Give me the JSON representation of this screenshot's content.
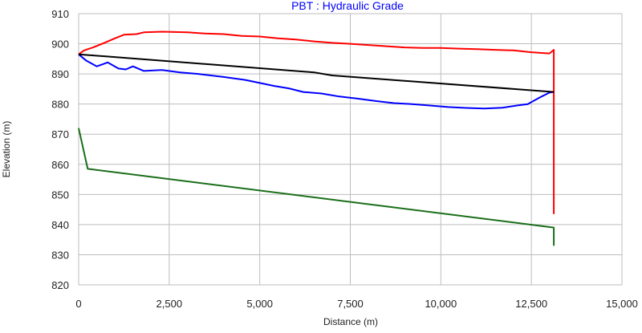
{
  "chart_data": {
    "type": "line",
    "title": "PBT : Hydraulic Grade",
    "xlabel": "Distance (m)",
    "ylabel": "Elevation (m)",
    "xlim": [
      0,
      15000
    ],
    "ylim": [
      820,
      910
    ],
    "xticks": [
      0,
      2500,
      5000,
      7500,
      10000,
      12500,
      15000
    ],
    "xtick_labels": [
      "0",
      "2,500",
      "5,000",
      "7,500",
      "10,000",
      "12,500",
      "15,000"
    ],
    "yticks": [
      820,
      830,
      840,
      850,
      860,
      870,
      880,
      890,
      900,
      910
    ],
    "grid": true,
    "title_color": "#0000ff",
    "series": [
      {
        "color": "#ff0000",
        "points": [
          [
            0,
            896.5
          ],
          [
            150,
            897.8
          ],
          [
            400,
            898.8
          ],
          [
            750,
            900.5
          ],
          [
            1000,
            901.8
          ],
          [
            1250,
            903
          ],
          [
            1600,
            903.2
          ],
          [
            1800,
            903.8
          ],
          [
            2300,
            904
          ],
          [
            3000,
            903.8
          ],
          [
            3500,
            903.4
          ],
          [
            4000,
            903.2
          ],
          [
            4500,
            902.6
          ],
          [
            5000,
            902.4
          ],
          [
            5500,
            901.8
          ],
          [
            6000,
            901.4
          ],
          [
            6500,
            900.8
          ],
          [
            7000,
            900.3
          ],
          [
            7500,
            900
          ],
          [
            8000,
            899.6
          ],
          [
            8500,
            899.2
          ],
          [
            9000,
            898.8
          ],
          [
            9500,
            898.6
          ],
          [
            10000,
            898.6
          ],
          [
            10500,
            898.4
          ],
          [
            11000,
            898.2
          ],
          [
            11500,
            898
          ],
          [
            12000,
            897.8
          ],
          [
            12500,
            897.2
          ],
          [
            13000,
            896.8
          ],
          [
            13120,
            898
          ],
          [
            13120,
            843.5
          ]
        ]
      },
      {
        "color": "#0000ff",
        "points": [
          [
            0,
            896.5
          ],
          [
            200,
            894.5
          ],
          [
            500,
            892.5
          ],
          [
            800,
            893.8
          ],
          [
            1100,
            891.8
          ],
          [
            1300,
            891.5
          ],
          [
            1500,
            892.5
          ],
          [
            1800,
            891
          ],
          [
            2300,
            891.3
          ],
          [
            2800,
            890.5
          ],
          [
            3300,
            890
          ],
          [
            4000,
            889
          ],
          [
            4600,
            888
          ],
          [
            5000,
            887
          ],
          [
            5400,
            886
          ],
          [
            5800,
            885.2
          ],
          [
            6200,
            884
          ],
          [
            6700,
            883.5
          ],
          [
            7200,
            882.5
          ],
          [
            7700,
            881.8
          ],
          [
            8200,
            881
          ],
          [
            8700,
            880.3
          ],
          [
            9200,
            880
          ],
          [
            9700,
            879.5
          ],
          [
            10200,
            879
          ],
          [
            10700,
            878.7
          ],
          [
            11200,
            878.5
          ],
          [
            11700,
            878.8
          ],
          [
            12100,
            879.5
          ],
          [
            12400,
            880
          ],
          [
            12700,
            882
          ],
          [
            13000,
            883.8
          ],
          [
            13120,
            884
          ]
        ]
      },
      {
        "color": "#000000",
        "points": [
          [
            0,
            896.5
          ],
          [
            6500,
            890.5
          ],
          [
            7000,
            889.5
          ],
          [
            13120,
            884
          ]
        ]
      },
      {
        "color": "#1a6e1a",
        "points": [
          [
            0,
            872
          ],
          [
            250,
            858.5
          ],
          [
            13120,
            839
          ],
          [
            13120,
            833
          ]
        ]
      }
    ]
  }
}
